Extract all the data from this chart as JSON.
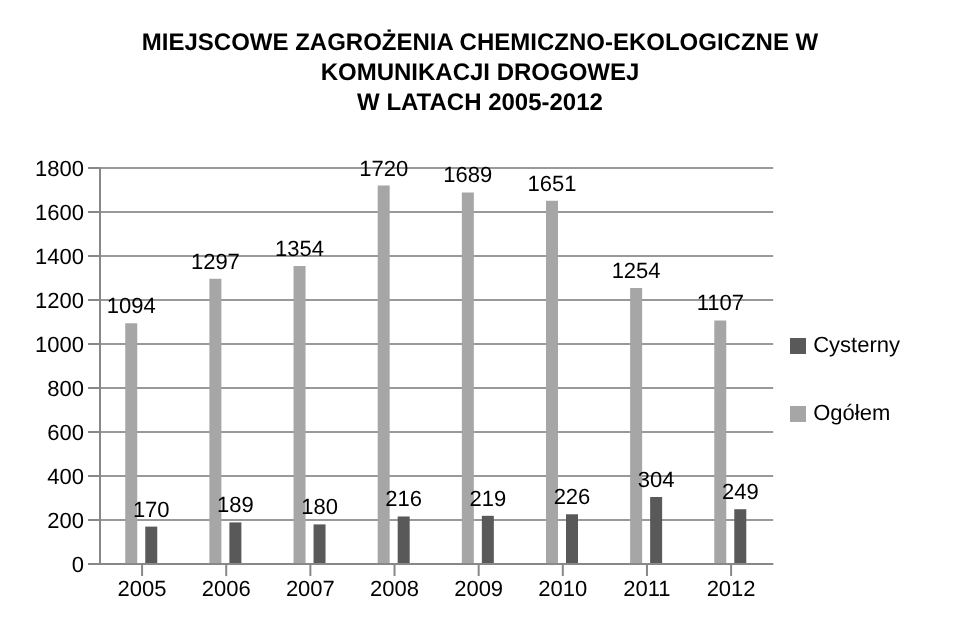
{
  "chart_data": {
    "type": "bar",
    "title": "MIEJSCOWE ZAGROŻENIA CHEMICZNO-EKOLOGICZNE W\nKOMUNIKACJI DROGOWEJ\nW LATACH 2005-2012",
    "categories": [
      "2005",
      "2006",
      "2007",
      "2008",
      "2009",
      "2010",
      "2011",
      "2012"
    ],
    "series": [
      {
        "name": "Ogółem",
        "color": "#a6a6a6",
        "values": [
          1094,
          1297,
          1354,
          1720,
          1689,
          1651,
          1254,
          1107
        ]
      },
      {
        "name": "Cysterny",
        "color": "#595959",
        "values": [
          170,
          189,
          180,
          216,
          219,
          226,
          304,
          249
        ]
      }
    ],
    "ylim": [
      0,
      1800
    ],
    "yticks": [
      0,
      200,
      400,
      600,
      800,
      1000,
      1200,
      1400,
      1600,
      1800
    ],
    "grid": "y",
    "legend": "right",
    "data_labels": true
  }
}
